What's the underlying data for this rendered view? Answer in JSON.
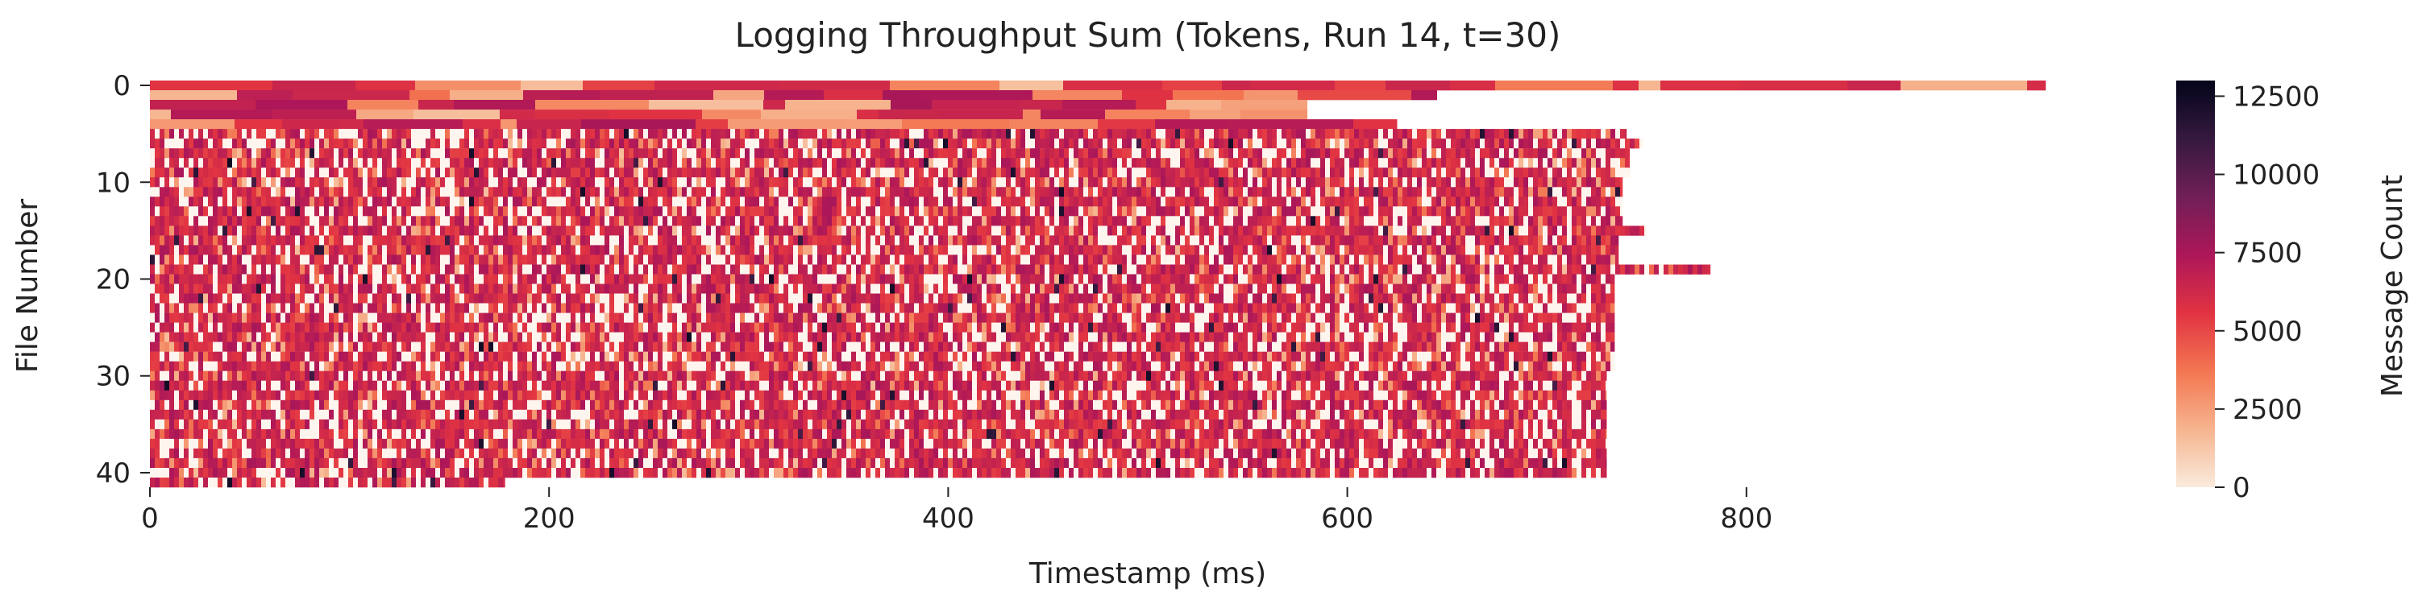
{
  "chart_data": {
    "type": "heatmap",
    "title": "Logging Throughput Sum (Tokens, Run 14, t=30)",
    "xlabel": "Timestamp (ms)",
    "ylabel": "File Number",
    "xlim": [
      0,
      1000
    ],
    "ylim": [
      0,
      42
    ],
    "x_ticks": [
      "0",
      "200",
      "400",
      "600",
      "800"
    ],
    "x_tick_values": [
      0,
      200,
      400,
      600,
      800
    ],
    "y_ticks": [
      "0",
      "10",
      "20",
      "30",
      "40"
    ],
    "y_tick_values": [
      0,
      10,
      20,
      30,
      40
    ],
    "colorbar": {
      "label": "Message Count",
      "min": 0,
      "max": 13000,
      "ticks": [
        "0",
        "2500",
        "5000",
        "7500",
        "10000",
        "12500"
      ],
      "tick_values": [
        0,
        2500,
        5000,
        7500,
        10000,
        12500
      ],
      "colormap": "rocket_r",
      "colors": [
        "#faebdd",
        "#f6b48e",
        "#f37651",
        "#e13342",
        "#ad1759",
        "#701f57",
        "#35193e",
        "#03051a"
      ]
    },
    "row_extents_ms": [
      {
        "rows": [
          0,
          0
        ],
        "end": 950
      },
      {
        "rows": [
          1,
          1
        ],
        "end": 645
      },
      {
        "rows": [
          2,
          3
        ],
        "end": 580
      },
      {
        "rows": [
          4,
          4
        ],
        "end": 625
      },
      {
        "rows": [
          5,
          5
        ],
        "end": 740
      },
      {
        "rows": [
          6,
          6
        ],
        "end": 748
      },
      {
        "rows": [
          7,
          9
        ],
        "end": 742
      },
      {
        "rows": [
          10,
          14
        ],
        "end": 738
      },
      {
        "rows": [
          15,
          15
        ],
        "end": 750
      },
      {
        "rows": [
          16,
          18
        ],
        "end": 736
      },
      {
        "rows": [
          19,
          19
        ],
        "end": 782
      },
      {
        "rows": [
          20,
          29
        ],
        "end": 734
      },
      {
        "rows": [
          30,
          40
        ],
        "end": 730
      },
      {
        "rows": [
          41,
          41
        ],
        "end": 178
      }
    ],
    "typical_value": 6000
  }
}
